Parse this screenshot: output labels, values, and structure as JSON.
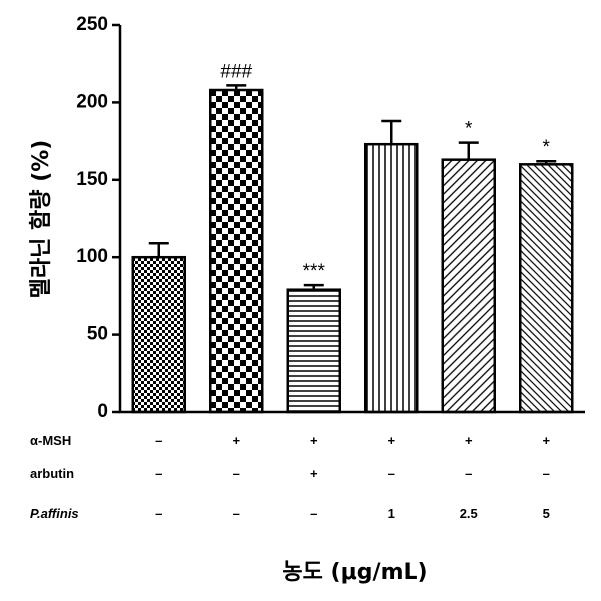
{
  "chart_data": {
    "type": "bar",
    "ylabel": "멜라닌 함량 (%)",
    "xlabel": "농도 (μg/mL)",
    "ylim": [
      0,
      250
    ],
    "yticks": [
      0,
      50,
      100,
      150,
      200,
      250
    ],
    "values": [
      100,
      208,
      79,
      173,
      163,
      160
    ],
    "errors": [
      9,
      3,
      3,
      15,
      11,
      2
    ],
    "annotations": [
      "",
      "###",
      "***",
      "",
      "*",
      "*"
    ],
    "patterns": [
      "fine-checker",
      "large-checker",
      "horizontal-lines",
      "vertical-lines",
      "diagonal-lines",
      "diagonal-lines-dense"
    ],
    "table": {
      "rows": [
        {
          "label": "α-MSH",
          "italic": false,
          "cells": [
            "–",
            "+",
            "+",
            "+",
            "+",
            "+"
          ]
        },
        {
          "label": "arbutin",
          "italic": false,
          "cells": [
            "–",
            "–",
            "+",
            "–",
            "–",
            "–"
          ]
        },
        {
          "label": "P.affinis",
          "italic": true,
          "cells": [
            "–",
            "–",
            "–",
            "1",
            "2.5",
            "5"
          ]
        }
      ]
    },
    "grid": false,
    "legend": "none"
  }
}
